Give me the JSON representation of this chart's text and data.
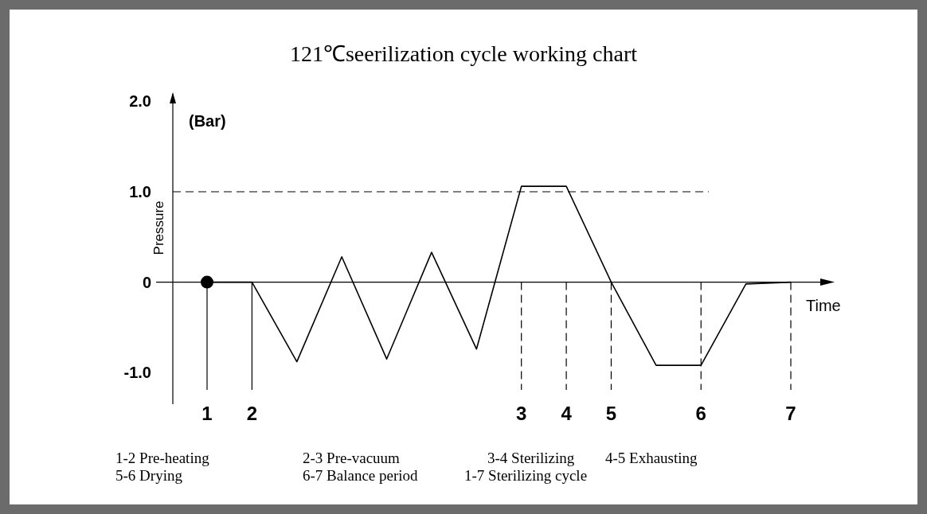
{
  "chart_data": {
    "type": "line",
    "title": "121℃seerilization cycle working chart",
    "xlabel": "Time",
    "ylabel": "Pressure",
    "categories": [
      "1",
      "2",
      null,
      null,
      null,
      null,
      null,
      "3",
      "4",
      "5",
      null,
      "6",
      null,
      "7"
    ],
    "ylim": [
      -1.35,
      2.1
    ],
    "yticks": [
      {
        "value": 2,
        "label": "2.0"
      },
      {
        "value": 1,
        "label": "1.0"
      },
      0,
      {
        "value": -1,
        "label": "-1.0"
      }
    ],
    "series": [
      {
        "color": "#000000",
        "values": [
          0,
          0,
          -0.88,
          0.28,
          -0.85,
          0.33,
          -0.74,
          1.06,
          1.06,
          0,
          -0.92,
          -0.92,
          -0.02,
          0
        ]
      },
      {
        "type": "scatter",
        "color": "#000000",
        "marker": "circle",
        "values": [
          0,
          null,
          null,
          null,
          null,
          null,
          null,
          null,
          null,
          null,
          null,
          null,
          null,
          null
        ]
      }
    ],
    "ref_lines": [
      {
        "axis": "y",
        "value": 1,
        "line_style": "dashed"
      },
      {
        "axis": "y",
        "value": 0,
        "line_style": "solid"
      },
      {
        "axis": "x",
        "value": "1",
        "line_style": "solid"
      },
      {
        "axis": "x",
        "value": "2",
        "line_style": "solid"
      },
      {
        "axis": "x",
        "value": "3",
        "line_style": "dashed"
      },
      {
        "axis": "x",
        "value": "4",
        "line_style": "dashed"
      },
      {
        "axis": "x",
        "value": "5",
        "line_style": "dashed"
      },
      {
        "axis": "x",
        "value": "6",
        "line_style": "dashed"
      },
      {
        "axis": "x",
        "value": "7",
        "line_style": "dashed"
      }
    ],
    "annotations": [
      "(Bar)",
      "1-2 Pre-heating",
      "2-3 Pre-vacuum",
      "3-4 Sterilizing",
      "4-5 Exhausting",
      "5-6 Drying",
      "6-7 Balance period",
      "1-7 Sterilizing cycle"
    ]
  }
}
